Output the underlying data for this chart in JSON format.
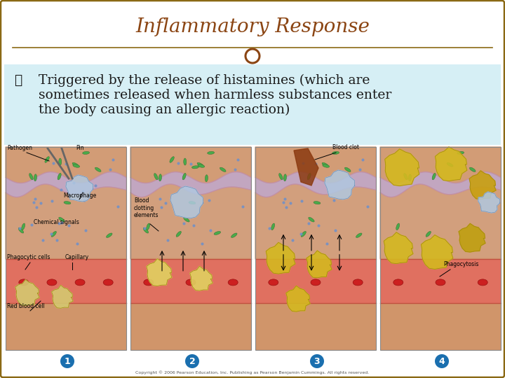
{
  "title": "Inflammatory Response",
  "title_color": "#8B4513",
  "title_fontsize": 20,
  "title_fontstyle": "italic",
  "title_fontfamily": "serif",
  "bullet_char": "❦",
  "bullet_line1": "Triggered by the release of histamines (which are",
  "bullet_line2": "sometimes released when harmless substances enter",
  "bullet_line3": "the body causing an allergic reaction)",
  "bullet_fontsize": 13.5,
  "bullet_color": "#1a1a1a",
  "text_box_bg": "#d6eff5",
  "outer_border_color": "#8B6914",
  "outer_bg": "#ffffff",
  "separator_circle_color": "#8B4513",
  "bottom_numbers": [
    "1",
    "2",
    "3",
    "4"
  ],
  "bottom_number_color": "#1a6faf",
  "copyright_text": "Copyright © 2006 Pearson Education, Inc. Publishing as Pearson Benjamin Cummings. All rights reserved.",
  "panel_bg": "#b8c8a8",
  "skin_top_color": "#d4956a",
  "skin_mid_color": "#c8845a",
  "capillary_color": "#e07060",
  "blood_cell_color": "#cc2020"
}
